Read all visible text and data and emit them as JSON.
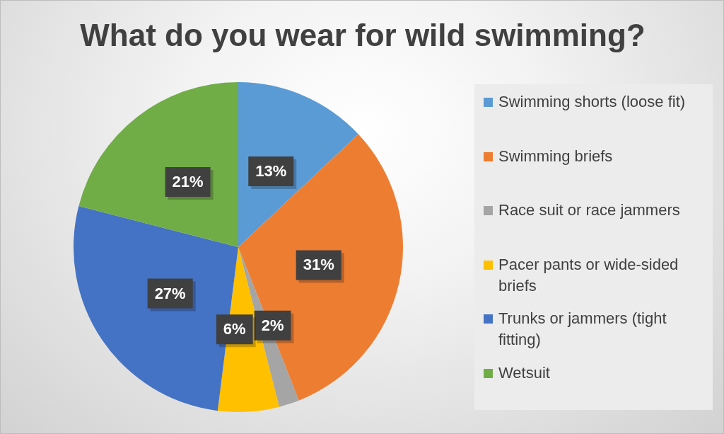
{
  "chart_data": {
    "type": "pie",
    "title": "What do you wear for wild swimming?",
    "categories": [
      "Swimming shorts (loose fit)",
      "Swimming briefs",
      "Race suit or race jammers",
      "Pacer pants or wide-sided briefs",
      "Trunks or jammers (tight fitting)",
      "Wetsuit"
    ],
    "values": [
      13,
      31,
      2,
      6,
      27,
      21
    ],
    "colors": [
      "#5b9bd5",
      "#ed7d31",
      "#a5a5a5",
      "#ffc000",
      "#4472c4",
      "#70ad47"
    ],
    "value_labels": [
      "13%",
      "31%",
      "2%",
      "6%",
      "27%",
      "21%"
    ],
    "legend": "right"
  }
}
